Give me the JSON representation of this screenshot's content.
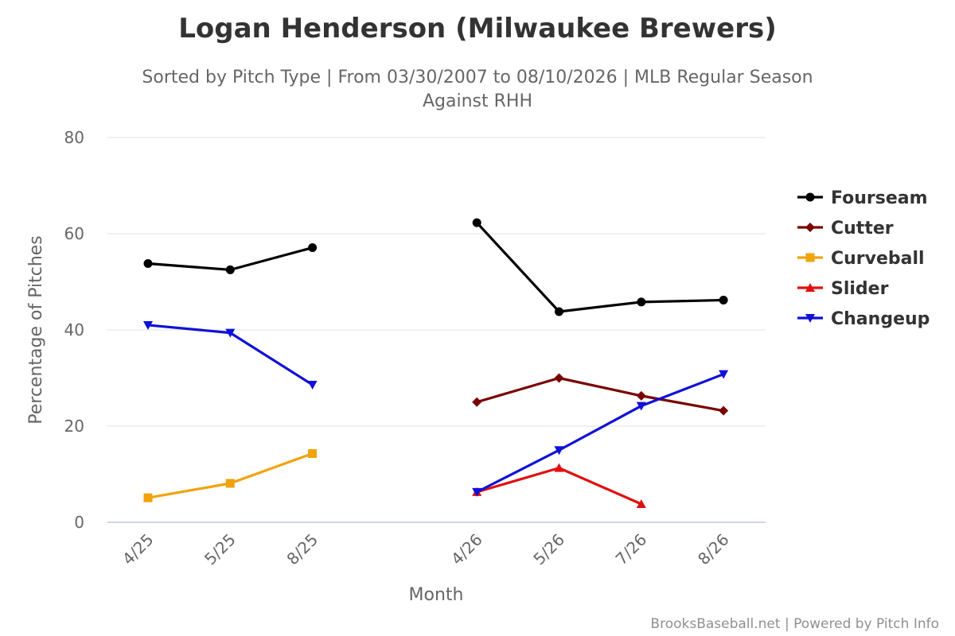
{
  "chart_data": {
    "type": "line",
    "title": "Logan Henderson (Milwaukee Brewers)",
    "subtitle_line1": "Sorted by Pitch Type | From 03/30/2007 to 08/10/2026 | MLB Regular Season",
    "subtitle_line2": "Against RHH",
    "xlabel": "Month",
    "ylabel": "Percentage of Pitches",
    "ylim": [
      0,
      80
    ],
    "yticks": [
      0,
      20,
      40,
      60,
      80
    ],
    "categories": [
      "4/25",
      "5/25",
      "8/25",
      "",
      "4/26",
      "5/26",
      "7/26",
      "8/26"
    ],
    "legend_position": "right",
    "grid": true,
    "credits": "BrooksBaseball.net | Powered by Pitch Info",
    "series": [
      {
        "name": "Fourseam",
        "color": "#000000",
        "marker": "circle",
        "values": [
          53.8,
          52.5,
          57.1,
          null,
          62.3,
          43.8,
          45.8,
          46.2
        ]
      },
      {
        "name": "Cutter",
        "color": "#7a0000",
        "marker": "diamond",
        "values": [
          null,
          null,
          null,
          null,
          25.0,
          30.0,
          26.3,
          23.2
        ]
      },
      {
        "name": "Curveball",
        "color": "#f0a30a",
        "marker": "square",
        "values": [
          5.1,
          8.1,
          14.3,
          null,
          null,
          null,
          null,
          null
        ]
      },
      {
        "name": "Slider",
        "color": "#e01010",
        "marker": "triangle",
        "values": [
          null,
          null,
          null,
          null,
          6.3,
          11.3,
          3.8,
          null
        ]
      },
      {
        "name": "Changeup",
        "color": "#1010d8",
        "marker": "triangle-down",
        "values": [
          41.0,
          39.4,
          28.6,
          null,
          6.3,
          15.0,
          24.2,
          30.8
        ]
      }
    ]
  }
}
